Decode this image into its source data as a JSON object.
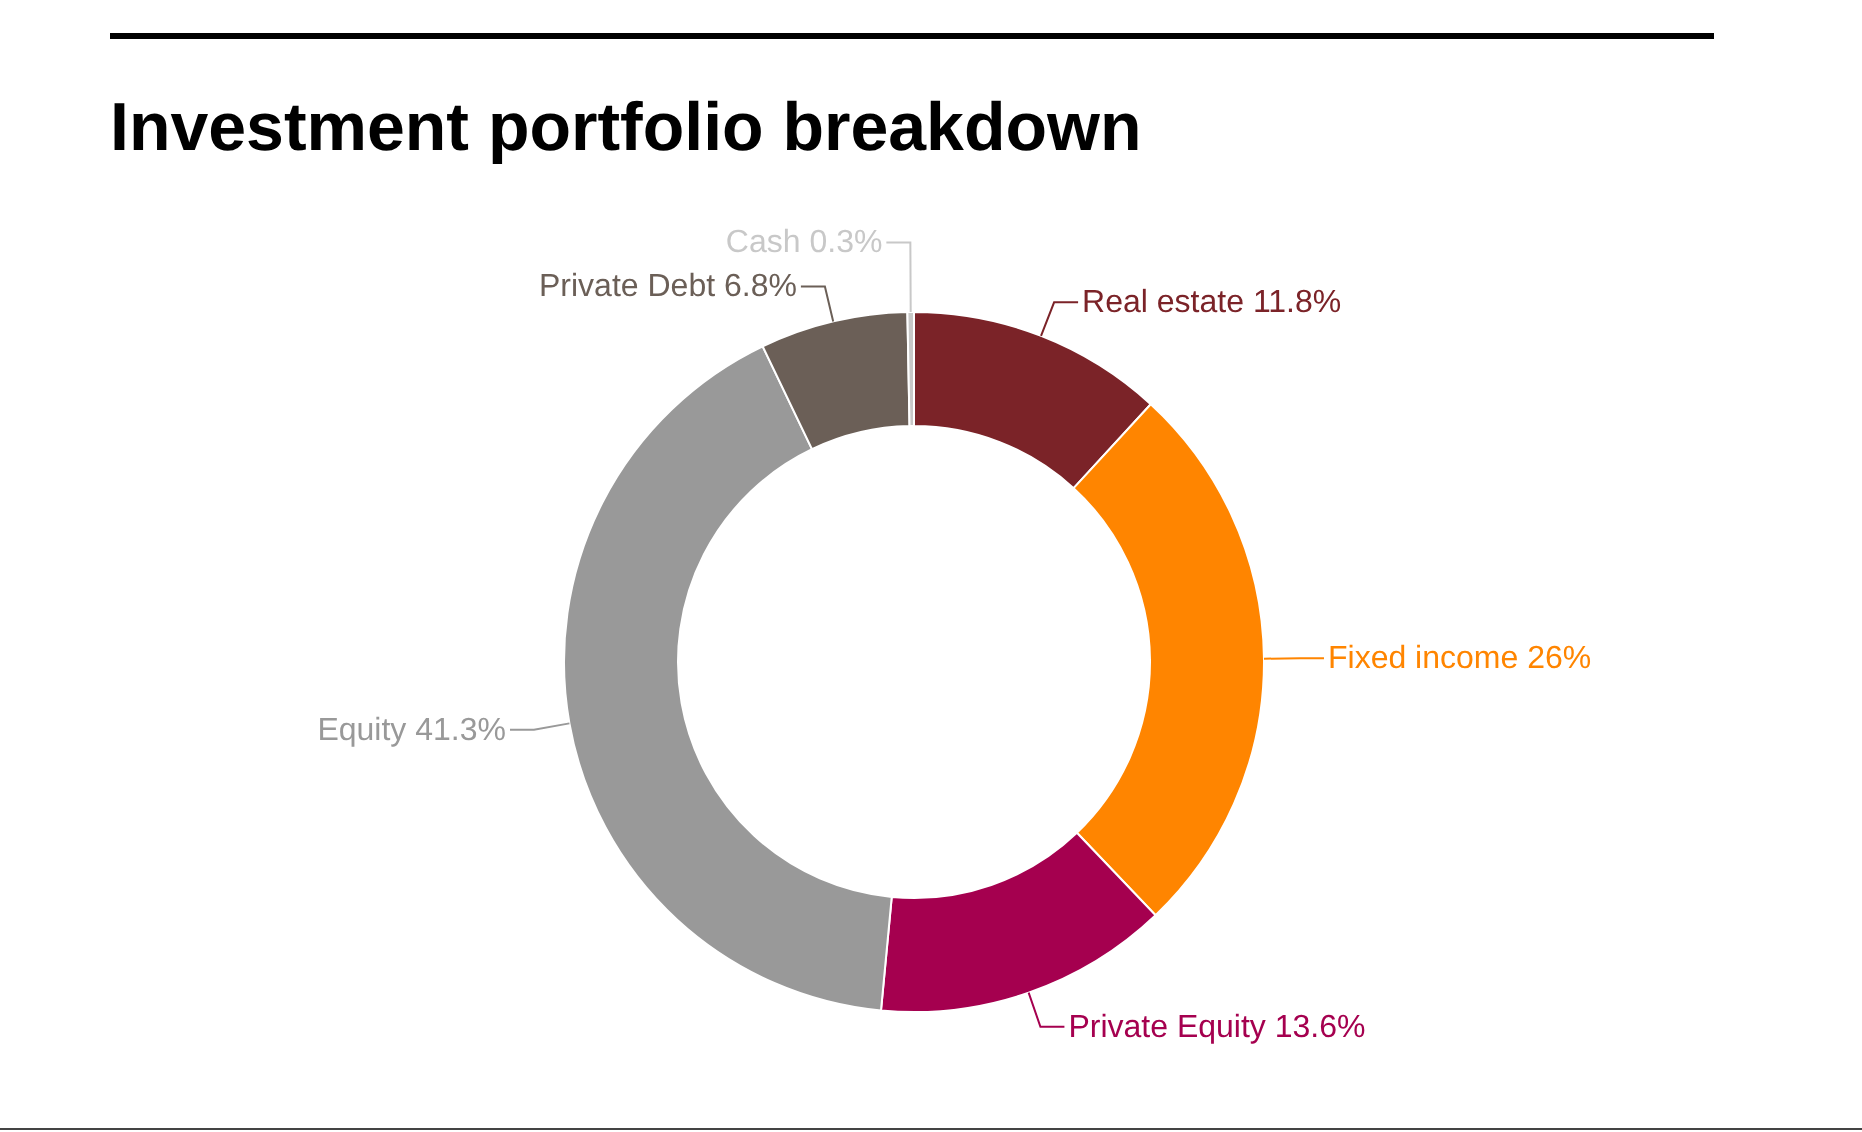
{
  "chart_data": {
    "type": "donut",
    "title": "Investment portfolio breakdown",
    "categories": [
      "Real estate",
      "Fixed income",
      "Private Equity",
      "Equity",
      "Private Debt",
      "Cash"
    ],
    "values": [
      11.8,
      26,
      13.6,
      41.3,
      6.8,
      0.3
    ],
    "colors": [
      "#7b2328",
      "#ff8500",
      "#a5004f",
      "#999999",
      "#6b5f57",
      "#c8c8c8"
    ],
    "value_labels": [
      "11.8%",
      "26%",
      "13.6%",
      "41.3%",
      "6.8%",
      "0.3%"
    ],
    "legend": false
  }
}
